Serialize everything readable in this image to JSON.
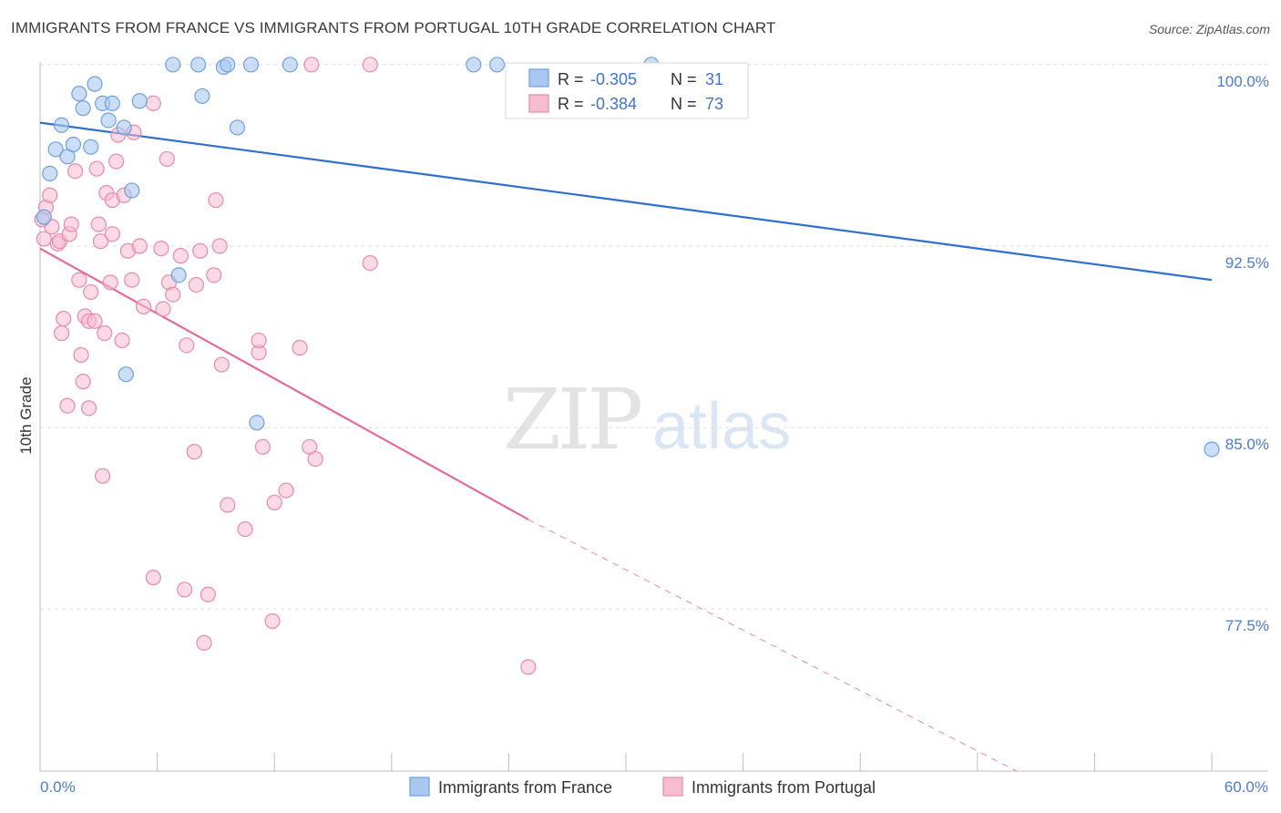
{
  "header": {
    "title": "IMMIGRANTS FROM FRANCE VS IMMIGRANTS FROM PORTUGAL 10TH GRADE CORRELATION CHART",
    "source": "Source: ZipAtlas.com"
  },
  "watermark": {
    "zip": "ZIP",
    "atlas": "atlas"
  },
  "colors": {
    "france_fill": "#a9c8ef",
    "france_stroke": "#6f9fde",
    "france_line": "#2f6fd0",
    "portugal_fill": "#f7bcd0",
    "portugal_stroke": "#e58aab",
    "portugal_line": "#e26b97",
    "tick_label": "#4a7ccc",
    "grid": "#dcdcdc"
  },
  "legend_box": {
    "rows": [
      {
        "r_label": "R = ",
        "r_value": "-0.305",
        "n_label": "N = ",
        "n_value": "31"
      },
      {
        "r_label": "R = ",
        "r_value": "-0.384",
        "n_label": "N = ",
        "n_value": "73"
      }
    ]
  },
  "chart_data": {
    "type": "scatter",
    "title": "IMMIGRANTS FROM FRANCE VS IMMIGRANTS FROM PORTUGAL 10TH GRADE CORRELATION CHART",
    "xlabel": "",
    "ylabel": "10th Grade",
    "xlim": [
      0,
      60
    ],
    "ylim": [
      70.8,
      100.6
    ],
    "x_tick_labels": [
      "0.0%",
      "60.0%"
    ],
    "y_ticks": [
      77.5,
      85.0,
      92.5,
      100.0
    ],
    "y_tick_labels": [
      "77.5%",
      "85.0%",
      "92.5%",
      "100.0%"
    ],
    "grid": "horizontal dashed",
    "legend_position": "bottom",
    "series": [
      {
        "name": "Immigrants from France",
        "r": -0.305,
        "n": 31,
        "trend": {
          "x": [
            0,
            60
          ],
          "y": [
            97.6,
            91.1
          ],
          "style": "solid"
        },
        "points": [
          {
            "x": 0.2,
            "y": 93.7
          },
          {
            "x": 0.5,
            "y": 95.5
          },
          {
            "x": 0.8,
            "y": 96.5
          },
          {
            "x": 1.1,
            "y": 97.5
          },
          {
            "x": 1.4,
            "y": 96.2
          },
          {
            "x": 1.7,
            "y": 96.7
          },
          {
            "x": 2.0,
            "y": 98.8
          },
          {
            "x": 2.2,
            "y": 98.2
          },
          {
            "x": 2.6,
            "y": 96.6
          },
          {
            "x": 2.8,
            "y": 99.2
          },
          {
            "x": 3.2,
            "y": 98.4
          },
          {
            "x": 3.5,
            "y": 97.7
          },
          {
            "x": 3.7,
            "y": 98.4
          },
          {
            "x": 4.3,
            "y": 97.4
          },
          {
            "x": 4.7,
            "y": 94.8
          },
          {
            "x": 5.1,
            "y": 98.5
          },
          {
            "x": 6.8,
            "y": 100.0
          },
          {
            "x": 8.1,
            "y": 100.0
          },
          {
            "x": 8.3,
            "y": 98.7
          },
          {
            "x": 9.4,
            "y": 99.9
          },
          {
            "x": 9.6,
            "y": 100.0
          },
          {
            "x": 10.8,
            "y": 100.0
          },
          {
            "x": 12.8,
            "y": 100.0
          },
          {
            "x": 22.2,
            "y": 100.0
          },
          {
            "x": 23.4,
            "y": 100.0
          },
          {
            "x": 31.3,
            "y": 100.0
          },
          {
            "x": 10.1,
            "y": 97.4
          },
          {
            "x": 7.1,
            "y": 91.3
          },
          {
            "x": 4.4,
            "y": 87.2
          },
          {
            "x": 11.1,
            "y": 85.2
          },
          {
            "x": 60.0,
            "y": 84.1
          }
        ]
      },
      {
        "name": "Immigrants from Portugal",
        "r": -0.384,
        "n": 73,
        "trend": {
          "x": [
            0,
            25
          ],
          "y": [
            92.4,
            81.2
          ],
          "style": "solid"
        },
        "trend_extension": {
          "x": [
            25,
            50
          ],
          "y": [
            81.2,
            70.8
          ],
          "style": "dashed"
        },
        "points": [
          {
            "x": 0.2,
            "y": 92.8
          },
          {
            "x": 0.3,
            "y": 94.1
          },
          {
            "x": 0.5,
            "y": 94.6
          },
          {
            "x": 0.6,
            "y": 93.3
          },
          {
            "x": 0.9,
            "y": 92.6
          },
          {
            "x": 1.0,
            "y": 92.7
          },
          {
            "x": 1.1,
            "y": 88.9
          },
          {
            "x": 1.2,
            "y": 89.5
          },
          {
            "x": 1.4,
            "y": 85.9
          },
          {
            "x": 1.5,
            "y": 93.0
          },
          {
            "x": 1.6,
            "y": 93.4
          },
          {
            "x": 1.8,
            "y": 95.6
          },
          {
            "x": 2.0,
            "y": 91.1
          },
          {
            "x": 2.1,
            "y": 88.0
          },
          {
            "x": 2.2,
            "y": 86.9
          },
          {
            "x": 2.3,
            "y": 89.6
          },
          {
            "x": 2.5,
            "y": 85.8
          },
          {
            "x": 2.5,
            "y": 89.4
          },
          {
            "x": 2.6,
            "y": 90.6
          },
          {
            "x": 2.8,
            "y": 89.4
          },
          {
            "x": 2.9,
            "y": 95.7
          },
          {
            "x": 3.0,
            "y": 93.4
          },
          {
            "x": 3.1,
            "y": 92.7
          },
          {
            "x": 3.2,
            "y": 83.0
          },
          {
            "x": 3.3,
            "y": 88.9
          },
          {
            "x": 3.4,
            "y": 94.7
          },
          {
            "x": 3.6,
            "y": 91.0
          },
          {
            "x": 3.7,
            "y": 93.0
          },
          {
            "x": 3.7,
            "y": 94.4
          },
          {
            "x": 3.9,
            "y": 96.0
          },
          {
            "x": 4.0,
            "y": 97.1
          },
          {
            "x": 4.2,
            "y": 88.6
          },
          {
            "x": 4.3,
            "y": 94.6
          },
          {
            "x": 4.5,
            "y": 92.3
          },
          {
            "x": 4.7,
            "y": 91.1
          },
          {
            "x": 4.8,
            "y": 97.2
          },
          {
            "x": 5.1,
            "y": 92.5
          },
          {
            "x": 5.3,
            "y": 90.0
          },
          {
            "x": 5.8,
            "y": 98.4
          },
          {
            "x": 5.8,
            "y": 78.8
          },
          {
            "x": 6.2,
            "y": 92.4
          },
          {
            "x": 6.3,
            "y": 89.9
          },
          {
            "x": 6.5,
            "y": 96.1
          },
          {
            "x": 6.6,
            "y": 91.0
          },
          {
            "x": 6.8,
            "y": 90.5
          },
          {
            "x": 7.2,
            "y": 92.1
          },
          {
            "x": 7.4,
            "y": 78.3
          },
          {
            "x": 7.5,
            "y": 88.4
          },
          {
            "x": 7.9,
            "y": 84.0
          },
          {
            "x": 8.0,
            "y": 90.9
          },
          {
            "x": 8.2,
            "y": 92.3
          },
          {
            "x": 8.4,
            "y": 76.1
          },
          {
            "x": 8.6,
            "y": 78.1
          },
          {
            "x": 8.9,
            "y": 91.3
          },
          {
            "x": 9.0,
            "y": 94.4
          },
          {
            "x": 9.2,
            "y": 92.5
          },
          {
            "x": 9.3,
            "y": 87.6
          },
          {
            "x": 9.6,
            "y": 81.8
          },
          {
            "x": 10.5,
            "y": 80.8
          },
          {
            "x": 11.2,
            "y": 88.1
          },
          {
            "x": 11.2,
            "y": 88.6
          },
          {
            "x": 11.4,
            "y": 84.2
          },
          {
            "x": 11.9,
            "y": 77.0
          },
          {
            "x": 12.0,
            "y": 81.9
          },
          {
            "x": 12.6,
            "y": 82.4
          },
          {
            "x": 13.3,
            "y": 88.3
          },
          {
            "x": 13.8,
            "y": 84.2
          },
          {
            "x": 14.1,
            "y": 83.7
          },
          {
            "x": 13.9,
            "y": 100.0
          },
          {
            "x": 16.9,
            "y": 100.0
          },
          {
            "x": 16.9,
            "y": 91.8
          },
          {
            "x": 25.0,
            "y": 75.1
          },
          {
            "x": 0.1,
            "y": 93.6
          }
        ]
      }
    ]
  }
}
